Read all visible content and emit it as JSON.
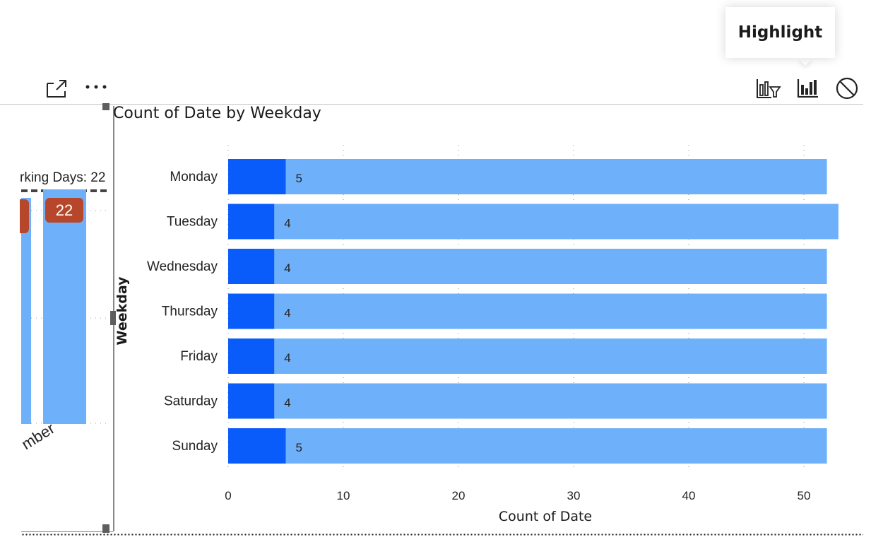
{
  "tooltip": {
    "text": "Highlight"
  },
  "toolbar": {
    "focus_mode_icon": "focus-mode-icon",
    "more_options_icon": "more-options-icon",
    "filter_icon": "filter-chart-icon",
    "highlight_icon": "highlight-chart-icon",
    "none_icon": "no-interaction-icon"
  },
  "left_visual": {
    "label": "rking Days: 22",
    "badge": "22",
    "axis_label": "mber"
  },
  "chart_data": {
    "type": "bar",
    "orientation": "horizontal",
    "title": "Count of Date by Weekday",
    "xlabel": "Count of Date",
    "ylabel": "Weekday",
    "categories": [
      "Monday",
      "Tuesday",
      "Wednesday",
      "Thursday",
      "Friday",
      "Saturday",
      "Sunday"
    ],
    "series": [
      {
        "values": [
          52,
          53,
          52,
          52,
          52,
          52,
          52
        ],
        "color": "#6eb1fa"
      },
      {
        "values": [
          5,
          4,
          4,
          4,
          4,
          4,
          5
        ],
        "color": "#0a5cfa"
      }
    ],
    "data_labels": [
      "5",
      "4",
      "4",
      "4",
      "4",
      "4",
      "5"
    ],
    "xticks": [
      0,
      10,
      20,
      30,
      40,
      50
    ],
    "xlim": [
      0,
      50
    ],
    "grid": "vertical dotted"
  },
  "colors": {
    "bar_total": "#6eb1fa",
    "bar_highlight": "#0a5cfa",
    "badge": "#b7472a"
  }
}
